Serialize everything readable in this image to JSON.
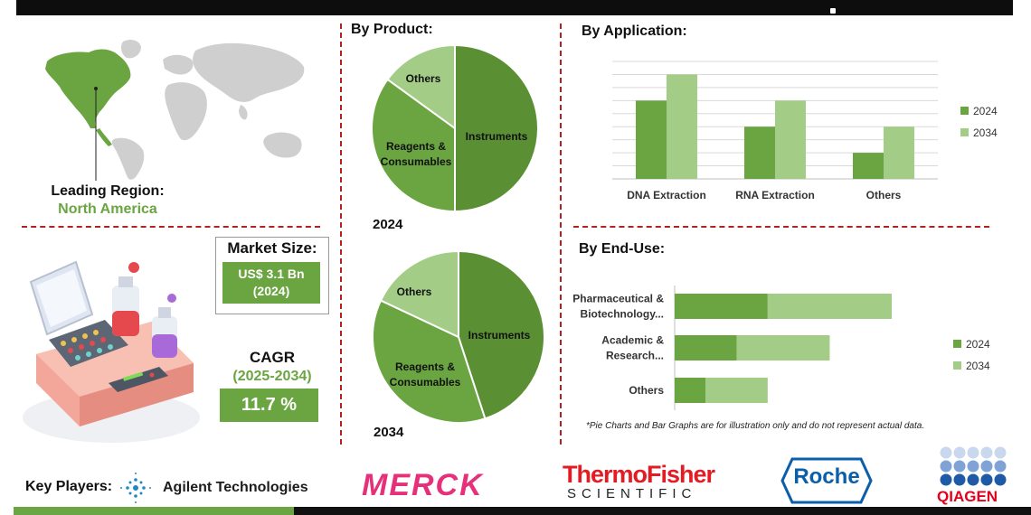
{
  "region": {
    "label": "Leading Region:",
    "value": "North America"
  },
  "market_size": {
    "label": "Market Size:",
    "value": "US$ 3.1 Bn",
    "year": "(2024)"
  },
  "cagr": {
    "label": "CAGR",
    "period": "(2025-2034)",
    "value": "11.7 %"
  },
  "by_product": {
    "title": "By Product:",
    "year_2024": "2024",
    "year_2034": "2034"
  },
  "by_application": {
    "title": "By Application:"
  },
  "by_end_use": {
    "title": "By End-Use:"
  },
  "disclaimer": "*Pie Charts and Bar Graphs are for illustration only and do not represent actual data.",
  "key_players": {
    "label": "Key Players:",
    "agilent": "Agilent Technologies",
    "merck": "MERCK",
    "thermo_top": "ThermoFisher",
    "thermo_bottom": "SCIENTIFIC",
    "roche": "Roche",
    "qiagen": "QIAGEN"
  },
  "colors": {
    "dark_green": "#5a8f34",
    "mid_green": "#6aa541",
    "light_green": "#a3cc86",
    "divider_red": "#b22222",
    "merck_pink": "#e6317a",
    "thermo_red": "#e31b23",
    "roche_blue": "#0b5ea8",
    "qiagen_red": "#e3001b",
    "qiagen_blue": "#1f5aa6"
  },
  "chart_data": [
    {
      "type": "pie",
      "name": "By Product 2024",
      "labels": [
        "Instruments",
        "Reagents & Consumables",
        "Others"
      ],
      "values": [
        50,
        35,
        15
      ]
    },
    {
      "type": "pie",
      "name": "By Product 2034",
      "labels": [
        "Instruments",
        "Reagents & Consumables",
        "Others"
      ],
      "values": [
        45,
        37,
        18
      ]
    },
    {
      "type": "bar",
      "name": "By Application",
      "orientation": "vertical",
      "categories": [
        "DNA Extraction",
        "RNA Extraction",
        "Others"
      ],
      "series": [
        {
          "name": "2024",
          "values": [
            3,
            2,
            1
          ]
        },
        {
          "name": "2034",
          "values": [
            4,
            3,
            2
          ]
        }
      ],
      "ylim": [
        0,
        4.5
      ],
      "grid": true,
      "legend": "right"
    },
    {
      "type": "bar",
      "name": "By End-Use",
      "orientation": "horizontal-stacked",
      "categories": [
        "Pharmaceutical & Biotechnology...",
        "Academic & Research...",
        "Others"
      ],
      "series": [
        {
          "name": "2024",
          "values": [
            1.5,
            1,
            0.5
          ]
        },
        {
          "name": "2034",
          "values": [
            2,
            1.5,
            1
          ]
        }
      ],
      "xlim": [
        0,
        3.5
      ],
      "legend": "right"
    }
  ]
}
